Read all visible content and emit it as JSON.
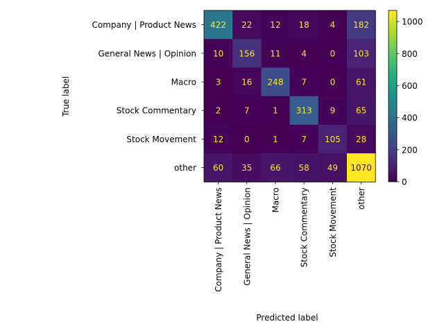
{
  "chart_data": {
    "type": "heatmap",
    "xlabel": "Predicted label",
    "ylabel": "True label",
    "classes": [
      "Company | Product News",
      "General News | Opinion",
      "Macro",
      "Stock Commentary",
      "Stock Movement",
      "other"
    ],
    "matrix": [
      [
        422,
        22,
        12,
        18,
        4,
        182
      ],
      [
        10,
        156,
        11,
        4,
        0,
        103
      ],
      [
        3,
        16,
        248,
        7,
        0,
        61
      ],
      [
        2,
        7,
        1,
        313,
        9,
        65
      ],
      [
        12,
        0,
        1,
        7,
        105,
        28
      ],
      [
        60,
        35,
        66,
        58,
        49,
        1070
      ]
    ],
    "colormap": "viridis",
    "vmin": 0,
    "vmax": 1070,
    "colorbar_ticks": [
      0,
      200,
      400,
      600,
      800,
      1000
    ],
    "low_value_text_color": "#fde725",
    "high_value_text_color": "#440154"
  }
}
